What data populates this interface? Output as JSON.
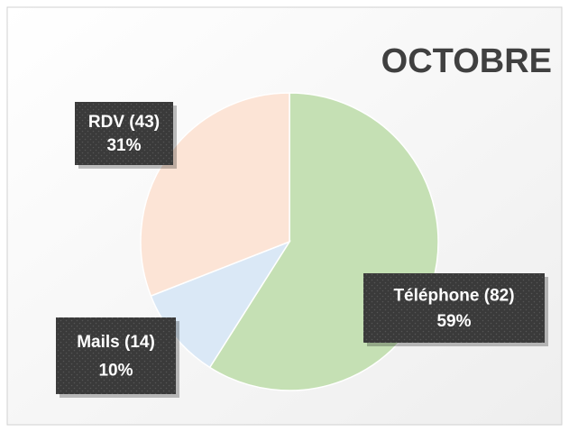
{
  "chart_data": {
    "type": "pie",
    "title": "OCTOBRE",
    "categories": [
      "Téléphone",
      "Mails",
      "RDV"
    ],
    "values": [
      82,
      14,
      43
    ],
    "value_labels": [
      "(82)",
      "(14)",
      "(43)"
    ],
    "percentages": [
      59,
      10,
      31
    ],
    "percentage_labels": [
      "59%",
      "10%",
      "31%"
    ],
    "colors": [
      "#c5e0b4",
      "#dae8f6",
      "#fce4d6"
    ]
  }
}
